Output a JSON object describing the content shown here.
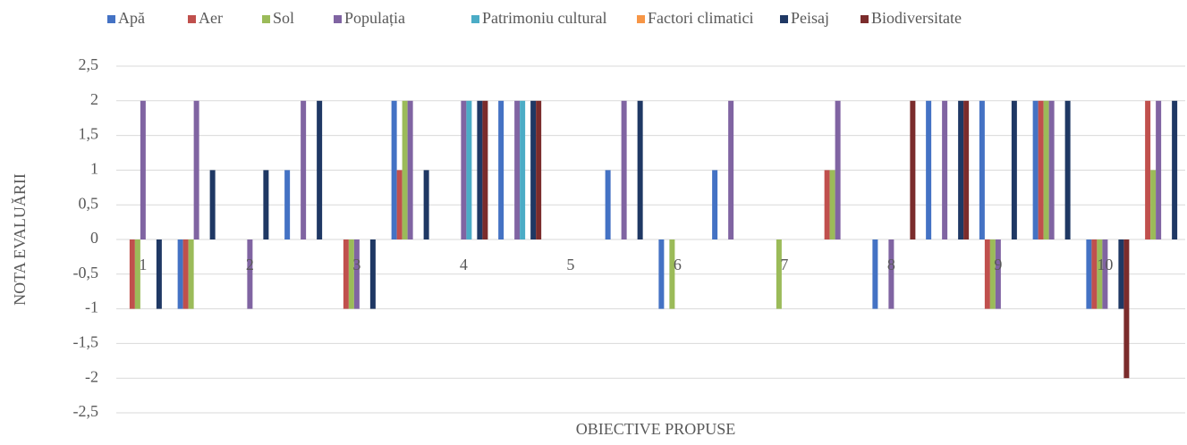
{
  "chart_data": {
    "type": "bar",
    "y_label": "NOTA EVALUĂRII",
    "x_label": "OBIECTIVE PROPUSE",
    "categories": [
      "1",
      null,
      "2",
      null,
      "3",
      null,
      "4",
      null,
      "5",
      null,
      "6",
      null,
      "7",
      null,
      "8",
      null,
      "9",
      null,
      "10",
      null
    ],
    "series": [
      {
        "name": "Apă",
        "color": "#4472c4",
        "values": [
          0,
          -1,
          0,
          1,
          0,
          2,
          0,
          2,
          0,
          1,
          -1,
          1,
          0,
          0,
          -1,
          2,
          2,
          2,
          -1,
          0
        ]
      },
      {
        "name": "Aer",
        "color": "#c0504d",
        "values": [
          -1,
          -1,
          0,
          0,
          -1,
          1,
          0,
          0,
          0,
          0,
          0,
          0,
          0,
          1,
          0,
          0,
          -1,
          2,
          -1,
          2
        ]
      },
      {
        "name": "Sol",
        "color": "#9bbb59",
        "values": [
          -1,
          -1,
          0,
          0,
          -1,
          2,
          0,
          0,
          0,
          0,
          -1,
          0,
          -1,
          1,
          0,
          0,
          -1,
          2,
          -1,
          1
        ]
      },
      {
        "name": "Populația",
        "color": "#8064a2",
        "values": [
          2,
          2,
          -1,
          2,
          -1,
          2,
          2,
          2,
          0,
          2,
          0,
          2,
          0,
          2,
          -1,
          2,
          -1,
          2,
          -1,
          2
        ]
      },
      {
        "name": "Patrimoniu cultural",
        "color": "#4bacc6",
        "values": [
          0,
          0,
          0,
          0,
          0,
          0,
          2,
          2,
          0,
          0,
          0,
          0,
          0,
          0,
          0,
          0,
          0,
          0,
          0,
          0
        ]
      },
      {
        "name": "Factori climatici",
        "color": "#f79646",
        "values": [
          0,
          0,
          0,
          0,
          0,
          0,
          0,
          0,
          0,
          0,
          0,
          0,
          0,
          0,
          0,
          0,
          0,
          0,
          0,
          0
        ]
      },
      {
        "name": "Peisaj",
        "color": "#1f3864",
        "values": [
          -1,
          1,
          1,
          2,
          -1,
          1,
          2,
          2,
          0,
          2,
          0,
          0,
          0,
          0,
          0,
          2,
          2,
          2,
          -1,
          2
        ]
      },
      {
        "name": "Biodiversitate",
        "color": "#7b2c2c",
        "values": [
          0,
          0,
          0,
          0,
          0,
          0,
          2,
          2,
          0,
          0,
          0,
          0,
          0,
          0,
          2,
          2,
          0,
          0,
          -2,
          0
        ]
      }
    ],
    "ylim": [
      -2.5,
      2.5
    ],
    "yticks": [
      {
        "value": -2.5,
        "label": "-2,5"
      },
      -2,
      {
        "value": -1.5,
        "label": "-1,5"
      },
      -1,
      {
        "value": -0.5,
        "label": "-0,5"
      },
      0,
      {
        "value": 0.5,
        "label": "0,5"
      },
      1,
      {
        "value": 1.5,
        "label": "1,5"
      },
      2,
      {
        "value": 2.5,
        "label": "2,5"
      }
    ],
    "grid": true
  }
}
